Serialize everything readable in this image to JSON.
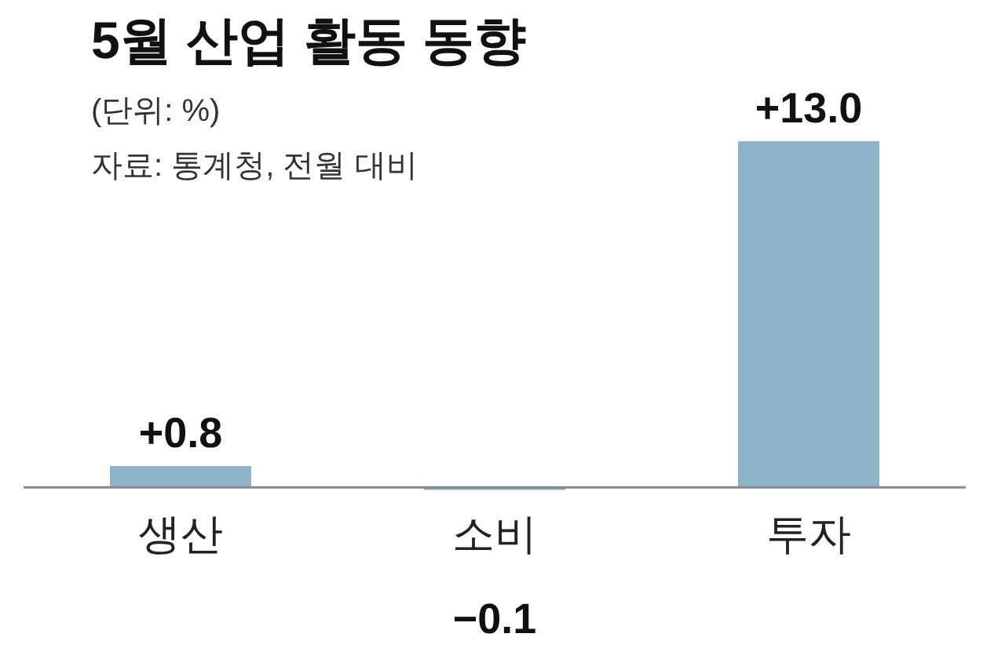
{
  "chart_data": {
    "type": "bar",
    "title": "5월 산업 활동 동향",
    "subtitle": "(단위: %)",
    "annotations": [
      "자료: 통계청, 전월 대비"
    ],
    "categories": [
      "생산",
      "소비",
      "투자"
    ],
    "values": [
      0.8,
      -0.1,
      13.0
    ],
    "value_labels": [
      "+0.8",
      "−0.1",
      "+13.0"
    ],
    "color": "#8db4c9"
  }
}
